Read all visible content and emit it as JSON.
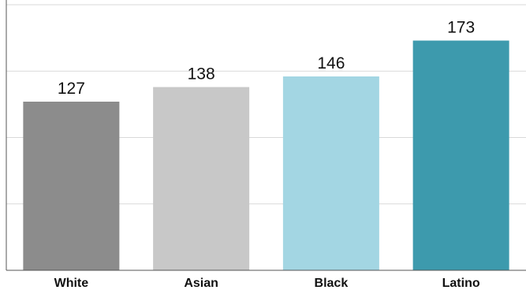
{
  "chart_data": {
    "type": "bar",
    "categories": [
      "White",
      "Asian",
      "Black",
      "Latino"
    ],
    "values": [
      127,
      138,
      146,
      173
    ],
    "colors": [
      "#8c8c8c",
      "#c8c8c8",
      "#a3d6e3",
      "#3d9aad"
    ],
    "ylim": [
      0,
      200
    ],
    "grid": true,
    "gridline_values": [
      50,
      100,
      150,
      200
    ],
    "title": "",
    "xlabel": "",
    "ylabel": ""
  }
}
